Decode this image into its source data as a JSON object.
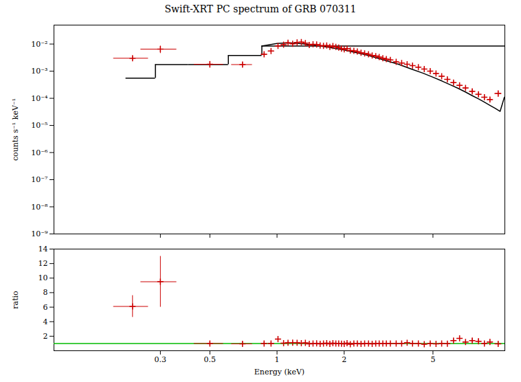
{
  "chart_data": [
    {
      "type": "scatter",
      "title": "Swift-XRT PC spectrum of GRB 070311",
      "ylabel": "counts s⁻¹ keV⁻¹",
      "log": true,
      "grid": false,
      "tick_labels": "y",
      "xlim": [
        0.1,
        10.5
      ],
      "ylim": [
        1e-09,
        0.05
      ],
      "xticks": [
        0.3,
        0.5,
        1,
        2,
        5
      ],
      "yticks": [
        {
          "value": 1e-09,
          "label": "10⁻⁹"
        },
        {
          "value": 1e-08,
          "label": "10⁻⁸"
        },
        {
          "value": 1e-07,
          "label": "10⁻⁷"
        },
        {
          "value": 1e-06,
          "label": "10⁻⁶"
        },
        {
          "value": 1e-05,
          "label": "10⁻⁵"
        },
        {
          "value": 0.0001,
          "label": "10⁻⁴"
        },
        {
          "value": 0.001,
          "label": "10⁻³"
        },
        {
          "value": 0.01,
          "label": "10⁻²"
        }
      ],
      "series": [
        {
          "type": "scatter",
          "marker": "plus",
          "color": "#cc0000",
          "x": [
            0.225,
            0.3,
            0.5,
            0.7,
            0.875,
            0.94,
            1.01,
            1.07,
            1.12,
            1.175,
            1.23,
            1.285,
            1.34,
            1.395,
            1.45,
            1.505,
            1.56,
            1.615,
            1.67,
            1.725,
            1.78,
            1.835,
            1.89,
            1.945,
            2.0,
            2.06,
            2.13,
            2.21,
            2.29,
            2.38,
            2.47,
            2.57,
            2.67,
            2.77,
            2.87,
            2.98,
            3.09,
            3.22,
            3.42,
            3.62,
            3.83,
            4.05,
            4.3,
            4.57,
            4.86,
            5.16,
            5.47,
            5.8,
            6.18,
            6.58,
            7.0,
            7.5,
            8.0,
            8.5,
            9.0,
            9.8
          ],
          "values": [
            0.003,
            0.0065,
            0.0018,
            0.00175,
            0.0042,
            0.0055,
            0.0085,
            0.0095,
            0.0112,
            0.0102,
            0.0115,
            0.0118,
            0.0108,
            0.0092,
            0.0098,
            0.0096,
            0.0088,
            0.0086,
            0.0088,
            0.0078,
            0.0084,
            0.0078,
            0.0074,
            0.0068,
            0.0064,
            0.0068,
            0.0058,
            0.0056,
            0.0053,
            0.0048,
            0.0045,
            0.0042,
            0.0038,
            0.0036,
            0.0033,
            0.003,
            0.0028,
            0.0026,
            0.0022,
            0.002,
            0.0018,
            0.0016,
            0.0014,
            0.0012,
            0.001,
            0.00082,
            0.00065,
            0.0005,
            0.00038,
            0.0003,
            0.00024,
            0.00018,
            0.00014,
            0.00011,
            9e-05,
            0.00015
          ],
          "xerr": [
            0.04,
            0.055,
            0.075,
            0.075,
            0.028,
            0.028,
            0.028,
            0.022,
            0.022,
            0.022,
            0.022,
            0.022,
            0.022,
            0.022,
            0.022,
            0.022,
            0.022,
            0.022,
            0.022,
            0.022,
            0.022,
            0.022,
            0.022,
            0.022,
            0.022,
            0.028,
            0.034,
            0.04,
            0.04,
            0.045,
            0.045,
            0.05,
            0.05,
            0.05,
            0.05,
            0.055,
            0.055,
            0.065,
            0.08,
            0.08,
            0.085,
            0.095,
            0.1,
            0.11,
            0.12,
            0.13,
            0.14,
            0.15,
            0.16,
            0.17,
            0.19,
            0.2,
            0.22,
            0.22,
            0.25,
            0.35
          ],
          "yerr": [
            0.0005,
            0.002,
            0.0005,
            0.0004,
            0.0005,
            0.0007,
            0.0009,
            0.0008,
            0.0009,
            0.0007,
            0.0008,
            0.0007,
            0.0007,
            0.0006,
            0.0006,
            0.0006,
            0.0005,
            0.0005,
            0.0005,
            0.0005,
            0.0005,
            0.0004,
            0.0004,
            0.0004,
            0.0004,
            0.0004,
            0.0003,
            0.0003,
            0.0003,
            0.0003,
            0.0003,
            0.0003,
            0.00025,
            0.00025,
            0.0002,
            0.0002,
            0.0002,
            0.0002,
            0.0002,
            0.0002,
            0.0002,
            0.00018,
            0.00015,
            0.00013,
            0.00012,
            0.0001,
            8e-05,
            7e-05,
            6e-05,
            5e-05,
            4e-05,
            3.5e-05,
            3e-05,
            2.5e-05,
            2e-05,
            4e-05
          ]
        },
        {
          "type": "step",
          "color": "#000000",
          "bins": [
            0.21,
            0.285,
            0.4,
            0.605,
            0.855,
            10.5
          ],
          "values": [
            0.00055,
            0.00175,
            0.00175,
            0.0038,
            0.0085
          ]
        },
        {
          "type": "line",
          "color": "#000000",
          "x": [
            0.855,
            1.0,
            1.1,
            1.2,
            1.3,
            1.4,
            1.5,
            1.6,
            1.7,
            1.8,
            1.9,
            2.0,
            2.2,
            2.5,
            2.8,
            3.1,
            3.5,
            4.0,
            4.5,
            5.0,
            5.5,
            6.0,
            6.5,
            7.0,
            7.5,
            8.0,
            8.5,
            9.0,
            9.5,
            10.0,
            10.45
          ],
          "values": [
            0.0085,
            0.0105,
            0.011,
            0.0108,
            0.0102,
            0.0095,
            0.0088,
            0.0082,
            0.0076,
            0.007,
            0.0065,
            0.006,
            0.0051,
            0.004,
            0.0031,
            0.0024,
            0.0018,
            0.0012,
            0.00085,
            0.0006,
            0.00043,
            0.00031,
            0.00023,
            0.00017,
            0.000125,
            9.5e-05,
            7.2e-05,
            5.5e-05,
            4.3e-05,
            3.3e-05,
            0.00011
          ]
        }
      ]
    },
    {
      "type": "scatter",
      "xlabel": "Energy (keV)",
      "ylabel": "ratio",
      "log": "x",
      "grid": false,
      "xlim": [
        0.1,
        10.5
      ],
      "ylim": [
        0,
        14
      ],
      "xticks": [
        0.3,
        0.5,
        1,
        2,
        5
      ],
      "yticks": [
        2,
        4,
        6,
        8,
        10,
        12,
        14
      ],
      "series": [
        {
          "type": "scatter",
          "marker": "plus",
          "color": "#cc0000",
          "x": [
            0.225,
            0.3,
            0.5,
            0.7,
            0.875,
            0.94,
            1.01,
            1.07,
            1.12,
            1.175,
            1.23,
            1.285,
            1.34,
            1.395,
            1.45,
            1.505,
            1.56,
            1.615,
            1.67,
            1.725,
            1.78,
            1.835,
            1.89,
            1.945,
            2.0,
            2.06,
            2.13,
            2.21,
            2.29,
            2.38,
            2.47,
            2.57,
            2.67,
            2.77,
            2.87,
            2.98,
            3.09,
            3.22,
            3.42,
            3.62,
            3.83,
            4.05,
            4.3,
            4.57,
            4.86,
            5.16,
            5.47,
            5.8,
            6.18,
            6.58,
            7.0,
            7.5,
            8.0,
            8.5,
            9.0,
            9.8
          ],
          "values": [
            6.1,
            9.5,
            1.0,
            0.95,
            1.0,
            1.0,
            1.6,
            1.05,
            1.1,
            1.12,
            1.1,
            1.05,
            1.08,
            0.95,
            1.0,
            1.02,
            0.95,
            1.0,
            1.05,
            0.95,
            1.05,
            1.0,
            1.0,
            0.98,
            0.94,
            1.05,
            0.9,
            1.0,
            1.0,
            0.95,
            1.0,
            1.0,
            0.95,
            1.0,
            1.0,
            1.0,
            1.0,
            1.0,
            1.0,
            1.0,
            1.1,
            1.0,
            1.0,
            0.9,
            1.0,
            0.95,
            1.0,
            0.98,
            1.4,
            1.7,
            1.2,
            1.4,
            1.3,
            1.0,
            1.2,
            0.95
          ],
          "xerr": [
            0.04,
            0.055,
            0.075,
            0.075,
            0.028,
            0.028,
            0.028,
            0.022,
            0.022,
            0.022,
            0.022,
            0.022,
            0.022,
            0.022,
            0.022,
            0.022,
            0.022,
            0.022,
            0.022,
            0.022,
            0.022,
            0.022,
            0.022,
            0.022,
            0.022,
            0.028,
            0.034,
            0.04,
            0.04,
            0.045,
            0.045,
            0.05,
            0.05,
            0.05,
            0.05,
            0.055,
            0.055,
            0.065,
            0.08,
            0.08,
            0.085,
            0.095,
            0.1,
            0.11,
            0.12,
            0.13,
            0.14,
            0.15,
            0.16,
            0.17,
            0.19,
            0.2,
            0.22,
            0.22,
            0.25,
            0.35
          ],
          "yerr": [
            1.5,
            3.5,
            0.25,
            0.25,
            0.18,
            0.15,
            0.28,
            0.1,
            0.12,
            0.1,
            0.1,
            0.09,
            0.09,
            0.09,
            0.09,
            0.09,
            0.08,
            0.08,
            0.08,
            0.07,
            0.08,
            0.07,
            0.07,
            0.06,
            0.06,
            0.07,
            0.06,
            0.06,
            0.06,
            0.06,
            0.06,
            0.06,
            0.05,
            0.05,
            0.05,
            0.05,
            0.05,
            0.05,
            0.05,
            0.05,
            0.09,
            0.09,
            0.09,
            0.09,
            0.09,
            0.09,
            0.09,
            0.09,
            0.25,
            0.35,
            0.25,
            0.3,
            0.35,
            0.25,
            0.35,
            0.25
          ]
        },
        {
          "type": "hline",
          "color": "#00bb00",
          "values": [
            1
          ]
        }
      ]
    }
  ]
}
